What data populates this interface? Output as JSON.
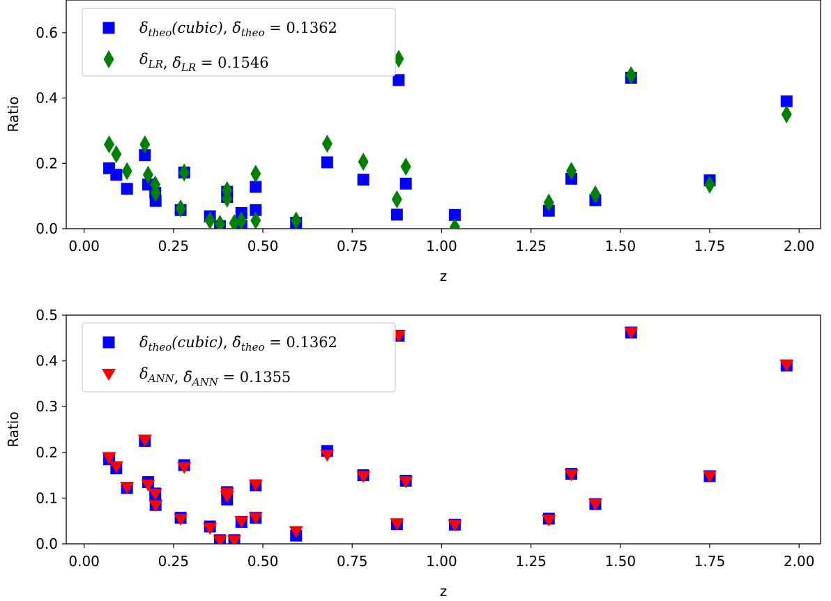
{
  "colors": {
    "theo": "#0000ff",
    "lr": "#007f00",
    "ann": "#ff0000"
  },
  "chart_data": [
    {
      "type": "scatter",
      "xlabel": "z",
      "ylabel": "Ratio",
      "xlim": [
        -0.05,
        2.06
      ],
      "ylim": [
        0,
        0.7
      ],
      "xticks": [
        "0.00",
        "0.25",
        "0.50",
        "0.75",
        "1.00",
        "1.25",
        "1.50",
        "1.75",
        "2.00"
      ],
      "yticks": [
        "0.0",
        "0.2",
        "0.4",
        "0.6"
      ],
      "legend_position": "top-left",
      "legend": [
        {
          "label": "δtheo(cubic), δ̄theo = 0.1362",
          "marker": "square",
          "color": "#0000ff"
        },
        {
          "label": "δLR, δ̄LR = 0.1546",
          "marker": "diamond",
          "color": "#007f00"
        }
      ],
      "series": [
        {
          "name": "δtheo(cubic), δ̄theo = 0.1362",
          "marker": "square",
          "color": "#0000ff",
          "points": [
            [
              0.07,
              0.185
            ],
            [
              0.09,
              0.165
            ],
            [
              0.12,
              0.122
            ],
            [
              0.17,
              0.225
            ],
            [
              0.179,
              0.135
            ],
            [
              0.199,
              0.11
            ],
            [
              0.2,
              0.085
            ],
            [
              0.27,
              0.057
            ],
            [
              0.28,
              0.172
            ],
            [
              0.352,
              0.038
            ],
            [
              0.38,
              0.008
            ],
            [
              0.4,
              0.113
            ],
            [
              0.4,
              0.097
            ],
            [
              0.44,
              0.048
            ],
            [
              0.44,
              0.01
            ],
            [
              0.48,
              0.057
            ],
            [
              0.48,
              0.128
            ],
            [
              0.593,
              0.018
            ],
            [
              0.68,
              0.203
            ],
            [
              0.781,
              0.15
            ],
            [
              0.875,
              0.043
            ],
            [
              0.88,
              0.455
            ],
            [
              0.9,
              0.138
            ],
            [
              1.037,
              0.042
            ],
            [
              1.3,
              0.055
            ],
            [
              1.363,
              0.153
            ],
            [
              1.43,
              0.087
            ],
            [
              1.53,
              0.462
            ],
            [
              1.75,
              0.148
            ],
            [
              1.965,
              0.39
            ]
          ]
        },
        {
          "name": "δLR, δ̄LR = 0.1546",
          "marker": "diamond",
          "color": "#007f00",
          "points": [
            [
              0.07,
              0.258
            ],
            [
              0.09,
              0.228
            ],
            [
              0.12,
              0.176
            ],
            [
              0.17,
              0.258
            ],
            [
              0.179,
              0.165
            ],
            [
              0.199,
              0.135
            ],
            [
              0.2,
              0.11
            ],
            [
              0.27,
              0.062
            ],
            [
              0.28,
              0.172
            ],
            [
              0.352,
              0.025
            ],
            [
              0.38,
              0.015
            ],
            [
              0.4,
              0.118
            ],
            [
              0.4,
              0.092
            ],
            [
              0.42,
              0.017
            ],
            [
              0.44,
              0.025
            ],
            [
              0.48,
              0.025
            ],
            [
              0.48,
              0.168
            ],
            [
              0.593,
              0.025
            ],
            [
              0.68,
              0.26
            ],
            [
              0.781,
              0.205
            ],
            [
              0.875,
              0.09
            ],
            [
              0.88,
              0.52
            ],
            [
              0.9,
              0.19
            ],
            [
              1.037,
              0.005
            ],
            [
              1.3,
              0.08
            ],
            [
              1.363,
              0.177
            ],
            [
              1.43,
              0.105
            ],
            [
              1.53,
              0.47
            ],
            [
              1.75,
              0.135
            ],
            [
              1.965,
              0.35
            ]
          ]
        }
      ]
    },
    {
      "type": "scatter",
      "xlabel": "z",
      "ylabel": "Ratio",
      "xlim": [
        -0.05,
        2.06
      ],
      "ylim": [
        0,
        0.5
      ],
      "xticks": [
        "0.00",
        "0.25",
        "0.50",
        "0.75",
        "1.00",
        "1.25",
        "1.50",
        "1.75",
        "2.00"
      ],
      "yticks": [
        "0.0",
        "0.1",
        "0.2",
        "0.3",
        "0.4",
        "0.5"
      ],
      "legend_position": "top-left",
      "legend": [
        {
          "label": "δtheo(cubic), δ̄theo = 0.1362",
          "marker": "square",
          "color": "#0000ff"
        },
        {
          "label": "δANN, δ̄ANN = 0.1355",
          "marker": "triangle-down",
          "color": "#ff0000"
        }
      ],
      "series": [
        {
          "name": "δtheo(cubic), δ̄theo = 0.1362",
          "marker": "square",
          "color": "#0000ff",
          "points": [
            [
              0.07,
              0.185
            ],
            [
              0.09,
              0.165
            ],
            [
              0.12,
              0.122
            ],
            [
              0.17,
              0.225
            ],
            [
              0.179,
              0.135
            ],
            [
              0.199,
              0.11
            ],
            [
              0.2,
              0.085
            ],
            [
              0.27,
              0.057
            ],
            [
              0.28,
              0.172
            ],
            [
              0.352,
              0.038
            ],
            [
              0.38,
              0.008
            ],
            [
              0.4,
              0.113
            ],
            [
              0.4,
              0.097
            ],
            [
              0.42,
              0.008
            ],
            [
              0.44,
              0.048
            ],
            [
              0.48,
              0.057
            ],
            [
              0.48,
              0.128
            ],
            [
              0.593,
              0.018
            ],
            [
              0.68,
              0.203
            ],
            [
              0.781,
              0.15
            ],
            [
              0.875,
              0.043
            ],
            [
              0.88,
              0.455
            ],
            [
              0.9,
              0.138
            ],
            [
              1.037,
              0.042
            ],
            [
              1.3,
              0.055
            ],
            [
              1.363,
              0.153
            ],
            [
              1.43,
              0.087
            ],
            [
              1.53,
              0.462
            ],
            [
              1.75,
              0.148
            ],
            [
              1.965,
              0.39
            ]
          ]
        },
        {
          "name": "δANN, δ̄ANN = 0.1355",
          "marker": "triangle-down",
          "color": "#ff0000",
          "points": [
            [
              0.07,
              0.19
            ],
            [
              0.09,
              0.17
            ],
            [
              0.12,
              0.125
            ],
            [
              0.17,
              0.228
            ],
            [
              0.179,
              0.13
            ],
            [
              0.199,
              0.11
            ],
            [
              0.2,
              0.085
            ],
            [
              0.27,
              0.055
            ],
            [
              0.28,
              0.168
            ],
            [
              0.352,
              0.035
            ],
            [
              0.38,
              0.008
            ],
            [
              0.4,
              0.105
            ],
            [
              0.4,
              0.112
            ],
            [
              0.42,
              0.008
            ],
            [
              0.44,
              0.05
            ],
            [
              0.48,
              0.058
            ],
            [
              0.48,
              0.13
            ],
            [
              0.593,
              0.028
            ],
            [
              0.68,
              0.195
            ],
            [
              0.781,
              0.148
            ],
            [
              0.875,
              0.045
            ],
            [
              0.88,
              0.456
            ],
            [
              0.9,
              0.137
            ],
            [
              1.037,
              0.042
            ],
            [
              1.3,
              0.053
            ],
            [
              1.363,
              0.152
            ],
            [
              1.43,
              0.088
            ],
            [
              1.53,
              0.463
            ],
            [
              1.75,
              0.149
            ],
            [
              1.965,
              0.392
            ]
          ]
        }
      ]
    }
  ]
}
